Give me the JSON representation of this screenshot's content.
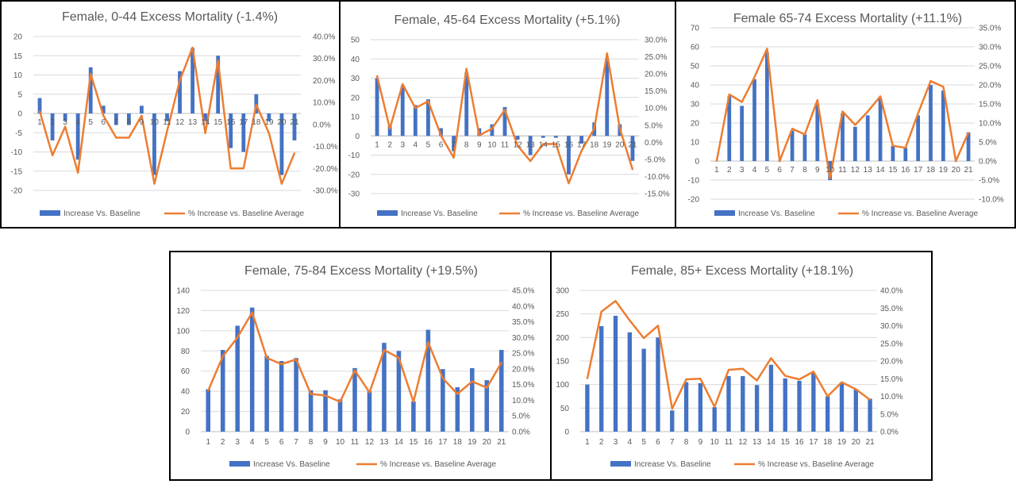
{
  "colors": {
    "bar": "#4472C4",
    "line": "#ED7D31",
    "grid": "#D9D9D9",
    "text": "#595959"
  },
  "legend": {
    "bar_label": "Increase Vs. Baseline",
    "line_label": "% Increase vs. Baseline Average"
  },
  "chart_data": [
    {
      "type": "bar+line",
      "title": "Female, 0-44 Excess Mortality (-1.4%)",
      "categories": [
        "1",
        "2",
        "3",
        "4",
        "5",
        "6",
        "7",
        "8",
        "9",
        "10",
        "11",
        "12",
        "13",
        "14",
        "15",
        "16",
        "17",
        "18",
        "19",
        "20",
        "21"
      ],
      "left_ticks": [
        "20",
        "15",
        "10",
        "5",
        "0",
        "-5",
        "-10",
        "-15",
        "-20"
      ],
      "right_ticks": [
        "40.0%",
        "30.0%",
        "20.0%",
        "10.0%",
        "0.0%",
        "-10.0%",
        "-20.0%",
        "-30.0%"
      ],
      "ylim_left": [
        -20,
        20
      ],
      "ylim_right": [
        -30,
        40
      ],
      "series": [
        {
          "name": "Increase Vs. Baseline",
          "type": "bar",
          "axis": "left",
          "values": [
            4,
            -7,
            -2,
            -12,
            12,
            2,
            -3,
            -3,
            2,
            -16,
            -2,
            11,
            17,
            -2,
            15,
            -9,
            -10,
            5,
            -2,
            -16,
            -7
          ]
        },
        {
          "name": "% Increase vs. Baseline Average",
          "type": "line",
          "axis": "right",
          "values": [
            6,
            -14,
            -1,
            -22,
            23,
            4,
            -6,
            -6,
            4,
            -27,
            -3,
            20,
            35,
            -4,
            29,
            -20,
            -20,
            9,
            -4,
            -27,
            -13
          ]
        }
      ]
    },
    {
      "type": "bar+line",
      "title": "Female, 45-64 Excess Mortality (+5.1%)",
      "categories": [
        "1",
        "2",
        "3",
        "4",
        "5",
        "6",
        "7",
        "8",
        "9",
        "10",
        "11",
        "12",
        "13",
        "14",
        "15",
        "16",
        "17",
        "18",
        "19",
        "20",
        "21"
      ],
      "left_ticks": [
        "50",
        "40",
        "30",
        "20",
        "10",
        "0",
        "-10",
        "-20",
        "-30"
      ],
      "right_ticks": [
        "30.0%",
        "25.0%",
        "20.0%",
        "15.0%",
        "10.0%",
        "5.0%",
        "0.0%",
        "-5.0%",
        "-10.0%",
        "-15.0%"
      ],
      "ylim_left": [
        -30,
        50
      ],
      "ylim_right": [
        -15,
        30
      ],
      "series": [
        {
          "name": "Increase Vs. Baseline",
          "type": "bar",
          "axis": "left",
          "values": [
            30,
            6,
            26,
            16,
            19,
            4,
            -8,
            33,
            4,
            6,
            15,
            -2,
            -10,
            -1,
            -1,
            -20,
            -4,
            7,
            40,
            6,
            -13
          ]
        },
        {
          "name": "% Increase vs. Baseline Average",
          "type": "line",
          "axis": "right",
          "values": [
            19.5,
            4,
            17,
            10,
            12,
            2,
            -4.5,
            21.5,
            2,
            4,
            9.5,
            -1,
            -5.5,
            -0.5,
            -0.5,
            -12,
            -2.5,
            4,
            26,
            4,
            -8
          ]
        }
      ]
    },
    {
      "type": "bar+line",
      "title": "Female 65-74 Excess Mortality (+11.1%)",
      "categories": [
        "1",
        "2",
        "3",
        "4",
        "5",
        "6",
        "7",
        "8",
        "9",
        "10",
        "11",
        "12",
        "13",
        "14",
        "15",
        "16",
        "17",
        "18",
        "19",
        "20",
        "21"
      ],
      "left_ticks": [
        "70",
        "60",
        "50",
        "40",
        "30",
        "20",
        "10",
        "0",
        "-10",
        "-20"
      ],
      "right_ticks": [
        "35.0%",
        "30.0%",
        "25.0%",
        "20.0%",
        "15.0%",
        "10.0%",
        "5.0%",
        "0.0%",
        "-5.0%",
        "-10.0%"
      ],
      "ylim_left": [
        -20,
        70
      ],
      "ylim_right": [
        -10,
        35
      ],
      "series": [
        {
          "name": "Increase Vs. Baseline",
          "type": "bar",
          "axis": "left",
          "values": [
            0,
            34,
            29,
            43,
            57,
            0,
            16,
            14,
            30,
            -10,
            25,
            18,
            24,
            33,
            8,
            7,
            24,
            40,
            37,
            0,
            15
          ]
        },
        {
          "name": "% Increase vs. Baseline Average",
          "type": "line",
          "axis": "right",
          "values": [
            0,
            17.5,
            15.5,
            22,
            29.5,
            0,
            8.5,
            7,
            16,
            -4.5,
            13,
            9.5,
            13,
            17,
            4,
            3.5,
            12.5,
            21,
            19.5,
            0,
            7.5
          ]
        }
      ]
    },
    {
      "type": "bar+line",
      "title": "Female, 75-84 Excess Mortality (+19.5%)",
      "categories": [
        "1",
        "2",
        "3",
        "4",
        "5",
        "6",
        "7",
        "8",
        "9",
        "10",
        "11",
        "12",
        "13",
        "14",
        "15",
        "16",
        "17",
        "18",
        "19",
        "20",
        "21"
      ],
      "left_ticks": [
        "140",
        "120",
        "100",
        "80",
        "60",
        "40",
        "20",
        "0"
      ],
      "right_ticks": [
        "45.0%",
        "40.0%",
        "35.0%",
        "30.0%",
        "25.0%",
        "20.0%",
        "15.0%",
        "10.0%",
        "5.0%",
        "0.0%"
      ],
      "ylim_left": [
        0,
        140
      ],
      "ylim_right": [
        0,
        45
      ],
      "series": [
        {
          "name": "Increase Vs. Baseline",
          "type": "bar",
          "axis": "left",
          "values": [
            42,
            81,
            105,
            123,
            75,
            70,
            73,
            41,
            41,
            32,
            63,
            40,
            88,
            80,
            30,
            101,
            62,
            44,
            63,
            51,
            81
          ]
        },
        {
          "name": "% Increase vs. Baseline Average",
          "type": "line",
          "axis": "right",
          "values": [
            13,
            24,
            30,
            38,
            23.5,
            21.5,
            23,
            12,
            11.5,
            9.5,
            19.5,
            12.5,
            26,
            23.5,
            9.5,
            28.5,
            17,
            12,
            16,
            14,
            22
          ]
        }
      ]
    },
    {
      "type": "bar+line",
      "title": "Female, 85+ Excess Mortality (+18.1%)",
      "categories": [
        "1",
        "2",
        "3",
        "4",
        "5",
        "6",
        "7",
        "8",
        "9",
        "10",
        "11",
        "12",
        "13",
        "14",
        "15",
        "16",
        "17",
        "18",
        "19",
        "20",
        "21"
      ],
      "left_ticks": [
        "300",
        "250",
        "200",
        "150",
        "100",
        "50",
        "0"
      ],
      "right_ticks": [
        "40.0%",
        "35.0%",
        "30.0%",
        "25.0%",
        "20.0%",
        "15.0%",
        "10.0%",
        "5.0%",
        "0.0%"
      ],
      "ylim_left": [
        0,
        300
      ],
      "ylim_right": [
        0,
        40
      ],
      "series": [
        {
          "name": "Increase Vs. Baseline",
          "type": "bar",
          "axis": "left",
          "values": [
            100,
            224,
            246,
            211,
            176,
            200,
            45,
            105,
            103,
            52,
            118,
            118,
            99,
            142,
            113,
            108,
            125,
            75,
            104,
            90,
            70
          ]
        },
        {
          "name": "% Increase vs. Baseline Average",
          "type": "line",
          "axis": "right",
          "values": [
            15,
            34,
            37,
            31.5,
            26.5,
            30,
            6.5,
            14.8,
            15,
            7,
            17.5,
            17.8,
            14.5,
            20.8,
            15.8,
            14.8,
            17,
            10,
            14,
            12,
            9
          ]
        }
      ]
    }
  ]
}
